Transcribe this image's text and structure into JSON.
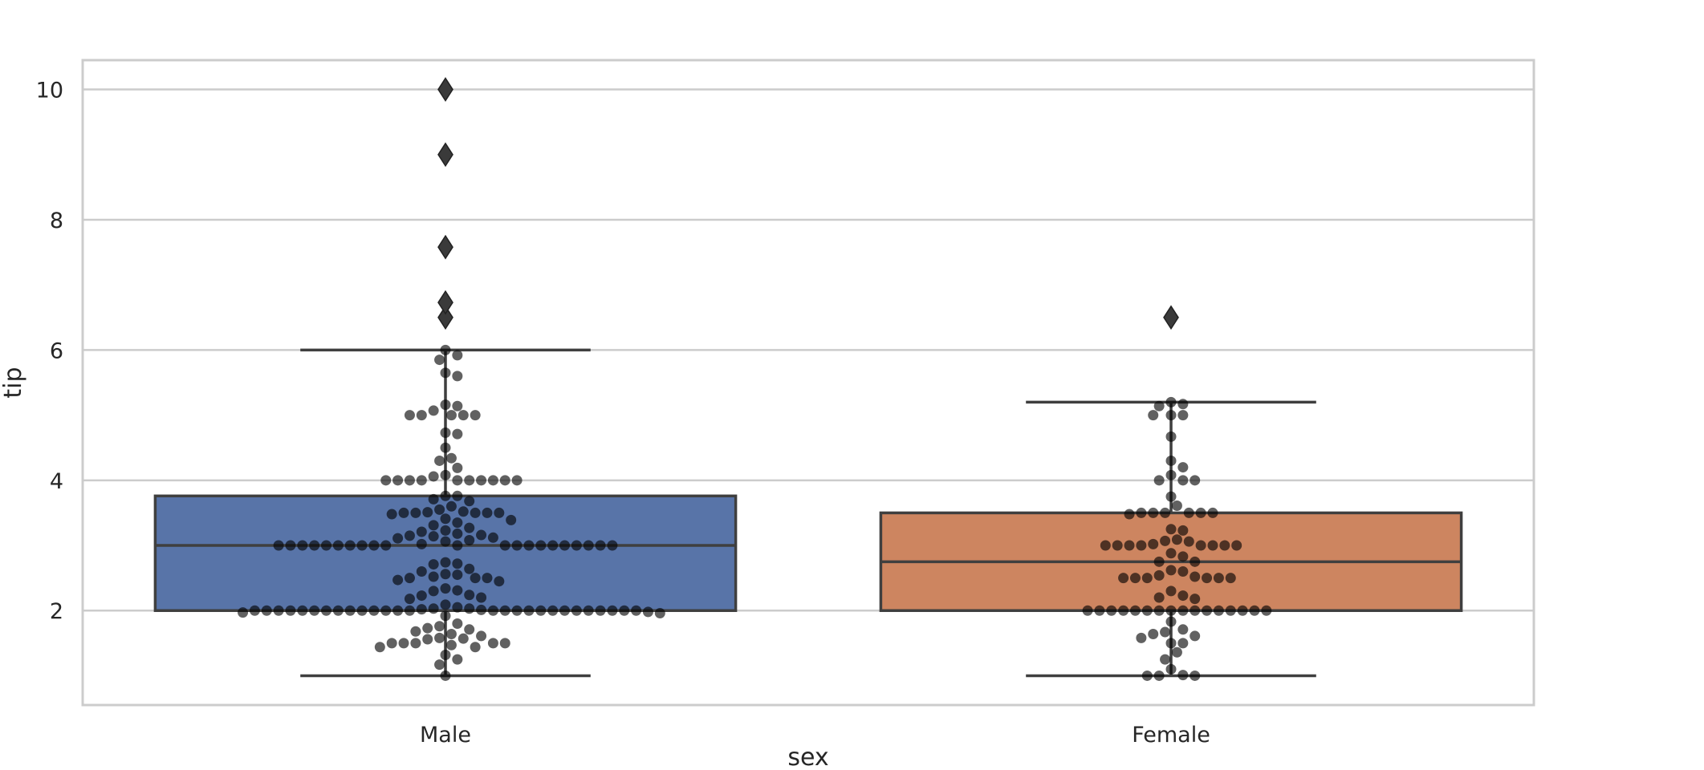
{
  "chart_data": {
    "type": "box",
    "title": "",
    "xlabel": "sex",
    "ylabel": "tip",
    "ylim": [
      0.55,
      10.45
    ],
    "yticks": [
      2,
      4,
      6,
      8,
      10
    ],
    "categories": [
      "Male",
      "Female"
    ],
    "grid": true,
    "colors": {
      "Male": "#5874a8",
      "Female": "#cd8560",
      "frame": "#cccccc",
      "grid": "#cccccc",
      "box_line": "#3f3f3f",
      "swarm": "#000000"
    },
    "boxes": [
      {
        "name": "Male",
        "q1": 2.0,
        "median": 3.0,
        "q3": 3.76,
        "whisker_low": 1.0,
        "whisker_high": 6.0,
        "outliers": [
          6.5,
          6.73,
          7.58,
          9.0,
          10.0
        ]
      },
      {
        "name": "Female",
        "q1": 2.0,
        "median": 2.75,
        "q3": 3.5,
        "whisker_low": 1.0,
        "whisker_high": 5.2,
        "outliers": [
          6.5
        ]
      }
    ],
    "swarm": [
      {
        "name": "Male",
        "values": [
          1.0,
          1.17,
          1.25,
          1.32,
          1.44,
          1.44,
          1.47,
          1.5,
          1.5,
          1.5,
          1.5,
          1.5,
          1.56,
          1.57,
          1.58,
          1.61,
          1.64,
          1.68,
          1.71,
          1.73,
          1.76,
          1.8,
          1.92,
          1.96,
          1.97,
          1.98,
          2.0,
          2.0,
          2.0,
          2.0,
          2.0,
          2.0,
          2.0,
          2.0,
          2.0,
          2.0,
          2.0,
          2.0,
          2.0,
          2.0,
          2.0,
          2.0,
          2.0,
          2.0,
          2.0,
          2.0,
          2.0,
          2.0,
          2.0,
          2.0,
          2.0,
          2.0,
          2.0,
          2.01,
          2.02,
          2.03,
          2.03,
          2.05,
          2.09,
          2.18,
          2.2,
          2.23,
          2.24,
          2.3,
          2.31,
          2.34,
          2.45,
          2.47,
          2.5,
          2.5,
          2.5,
          2.52,
          2.55,
          2.56,
          2.6,
          2.64,
          2.71,
          2.72,
          2.74,
          3.0,
          3.0,
          3.0,
          3.0,
          3.0,
          3.0,
          3.0,
          3.0,
          3.0,
          3.0,
          3.0,
          3.0,
          3.0,
          3.0,
          3.0,
          3.0,
          3.0,
          3.0,
          3.0,
          3.0,
          3.0,
          3.02,
          3.06,
          3.08,
          3.11,
          3.12,
          3.14,
          3.15,
          3.16,
          3.18,
          3.21,
          3.23,
          3.27,
          3.31,
          3.35,
          3.39,
          3.41,
          3.48,
          3.5,
          3.5,
          3.5,
          3.5,
          3.5,
          3.51,
          3.52,
          3.55,
          3.6,
          3.68,
          3.71,
          3.76,
          3.76,
          4.0,
          4.0,
          4.0,
          4.0,
          4.0,
          4.0,
          4.0,
          4.0,
          4.0,
          4.0,
          4.06,
          4.08,
          4.19,
          4.3,
          4.34,
          4.5,
          4.71,
          4.73,
          5.0,
          5.0,
          5.0,
          5.0,
          5.0,
          5.07,
          5.14,
          5.16,
          5.6,
          5.65,
          5.85,
          5.92,
          6.0,
          6.73
        ]
      },
      {
        "name": "Female",
        "values": [
          1.0,
          1.0,
          1.0,
          1.01,
          1.1,
          1.25,
          1.36,
          1.5,
          1.5,
          1.58,
          1.61,
          1.64,
          1.67,
          1.71,
          1.83,
          2.0,
          2.0,
          2.0,
          2.0,
          2.0,
          2.0,
          2.0,
          2.0,
          2.0,
          2.0,
          2.0,
          2.0,
          2.0,
          2.0,
          2.0,
          2.0,
          2.18,
          2.2,
          2.23,
          2.3,
          2.5,
          2.5,
          2.5,
          2.5,
          2.5,
          2.5,
          2.52,
          2.54,
          2.6,
          2.62,
          2.75,
          2.75,
          2.83,
          2.88,
          3.0,
          3.0,
          3.0,
          3.0,
          3.0,
          3.0,
          3.0,
          3.0,
          3.02,
          3.06,
          3.07,
          3.09,
          3.23,
          3.25,
          3.48,
          3.5,
          3.5,
          3.5,
          3.5,
          3.5,
          3.5,
          3.61,
          3.75,
          4.0,
          4.0,
          4.0,
          4.08,
          4.2,
          4.3,
          4.67,
          5.0,
          5.0,
          5.0,
          5.14,
          5.17,
          5.2
        ]
      }
    ]
  }
}
